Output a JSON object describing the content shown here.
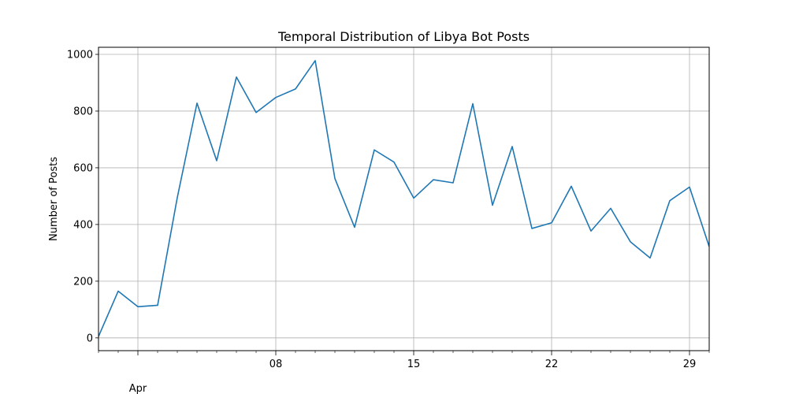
{
  "chart_data": {
    "type": "line",
    "title": "Temporal Distribution of Libya Bot Posts",
    "xlabel": "",
    "ylabel": "Number of Posts",
    "x": [
      "2011-03-30",
      "2011-03-31",
      "2011-04-01",
      "2011-04-02",
      "2011-04-03",
      "2011-04-04",
      "2011-04-05",
      "2011-04-06",
      "2011-04-07",
      "2011-04-08",
      "2011-04-09",
      "2011-04-10",
      "2011-04-11",
      "2011-04-12",
      "2011-04-13",
      "2011-04-14",
      "2011-04-15",
      "2011-04-16",
      "2011-04-17",
      "2011-04-18",
      "2011-04-19",
      "2011-04-20",
      "2011-04-21",
      "2011-04-22",
      "2011-04-23",
      "2011-04-24",
      "2011-04-25",
      "2011-04-26",
      "2011-04-27",
      "2011-04-28",
      "2011-04-29",
      "2011-04-30"
    ],
    "series": [
      {
        "values": [
          5,
          165,
          110,
          115,
          495,
          828,
          625,
          920,
          795,
          848,
          878,
          978,
          562,
          390,
          663,
          620,
          493,
          558,
          547,
          826,
          468,
          675,
          386,
          406,
          535,
          377,
          457,
          339,
          282,
          484,
          532,
          322
        ]
      }
    ],
    "x_major_ticks": [
      "Apr",
      "08",
      "15",
      "22",
      "29"
    ],
    "y_ticks": [
      0,
      200,
      400,
      600,
      800,
      1000
    ],
    "ylim": [
      -45,
      1025
    ],
    "grid": true,
    "line_color": "#1f77b4"
  }
}
